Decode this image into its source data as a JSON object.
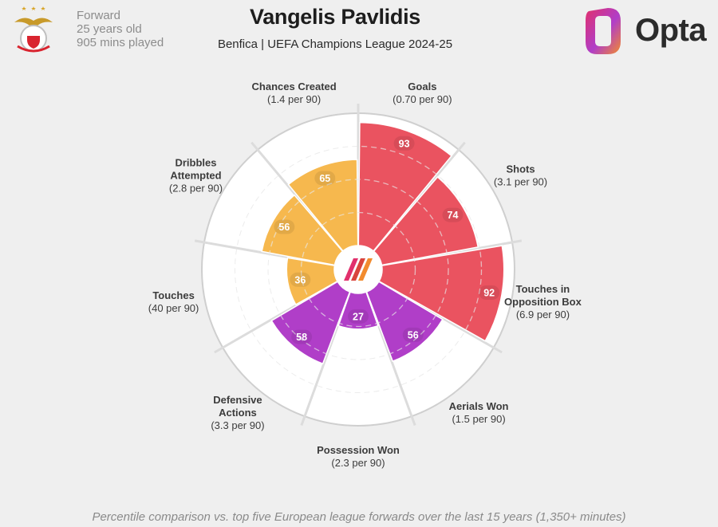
{
  "header": {
    "title": "Vangelis Pavlidis",
    "subtitle": "Benfica | UEFA Champions League 2024-25",
    "position": "Forward",
    "age": "25 years old",
    "minutes": "905 mins played",
    "brand": "Opta"
  },
  "footer": {
    "note": "Percentile comparison vs. top five European league forwards over the last 15 years (1,350+ minutes)"
  },
  "colors": {
    "attacking": "#ea5360",
    "possession": "#f6b84e",
    "defending": "#b03ec8",
    "background": "#efefef",
    "ring": "#cfcfcf"
  },
  "chart_data": {
    "type": "radar-percentile",
    "title": "Vangelis Pavlidis",
    "rmax": 100,
    "gridlines": [
      25,
      50,
      75
    ],
    "categories": [
      {
        "name": "Goals",
        "rate": "(0.70 per 90)",
        "value": 93,
        "group": "attacking"
      },
      {
        "name": "Shots",
        "rate": "(3.1 per 90)",
        "value": 74,
        "group": "attacking"
      },
      {
        "name": "Touches in\nOpposition Box",
        "rate": "(6.9 per 90)",
        "value": 92,
        "group": "attacking"
      },
      {
        "name": "Aerials Won",
        "rate": "(1.5 per 90)",
        "value": 56,
        "group": "defending"
      },
      {
        "name": "Possession Won",
        "rate": "(2.3 per 90)",
        "value": 27,
        "group": "defending"
      },
      {
        "name": "Defensive\nActions",
        "rate": "(3.3 per 90)",
        "value": 58,
        "group": "defending"
      },
      {
        "name": "Touches",
        "rate": "(40 per 90)",
        "value": 36,
        "group": "possession"
      },
      {
        "name": "Dribbles\nAttempted",
        "rate": "(2.8 per 90)",
        "value": 56,
        "group": "possession"
      },
      {
        "name": "Chances Created",
        "rate": "(1.4 per 90)",
        "value": 65,
        "group": "possession"
      }
    ]
  }
}
